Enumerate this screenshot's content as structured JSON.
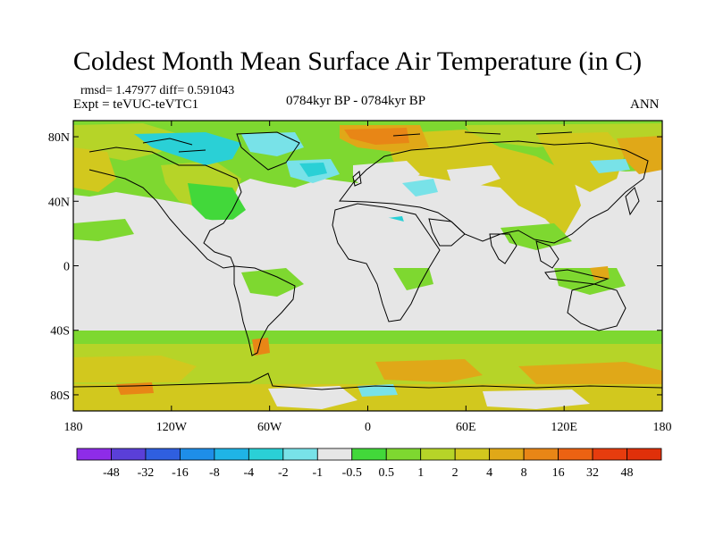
{
  "title": "Coldest Month Mean Surface Air Temperature (in C)",
  "stats": "rmsd= 1.47977 diff= 0.591043",
  "experiment": "Expt = teVUC-teVTC1",
  "period": "0784kyr BP - 0784kyr BP",
  "season": "ANN",
  "axes": {
    "y_ticks": [
      {
        "label": "80N",
        "value": 80
      },
      {
        "label": "40N",
        "value": 40
      },
      {
        "label": "0",
        "value": 0
      },
      {
        "label": "40S",
        "value": -40
      },
      {
        "label": "80S",
        "value": -80
      }
    ],
    "x_ticks": [
      {
        "label": "180",
        "value": -180
      },
      {
        "label": "120W",
        "value": -120
      },
      {
        "label": "60W",
        "value": -60
      },
      {
        "label": "0",
        "value": 0
      },
      {
        "label": "60E",
        "value": 60
      },
      {
        "label": "120E",
        "value": 120
      },
      {
        "label": "180",
        "value": 180
      }
    ],
    "lat_range": [
      -90,
      90
    ],
    "lon_range": [
      -180,
      180
    ]
  },
  "colorbar": {
    "labels": [
      "-48",
      "-32",
      "-16",
      "-8",
      "-4",
      "-2",
      "-1",
      "-0.5",
      "0.5",
      "1",
      "2",
      "4",
      "8",
      "16",
      "32",
      "48"
    ],
    "colors": [
      "#8e2ce8",
      "#5a3fd8",
      "#2f5fe0",
      "#1e8ee8",
      "#1fb4e6",
      "#2ad0d6",
      "#78e2e8",
      "#e6e6e6",
      "#42d83a",
      "#7ed830",
      "#b6d428",
      "#d2c81e",
      "#e0a818",
      "#e88616",
      "#ec6212",
      "#e63c0e",
      "#e0300a"
    ]
  },
  "colors": {
    "background_neutral": "#e6e6e6",
    "coast": "#000000"
  }
}
